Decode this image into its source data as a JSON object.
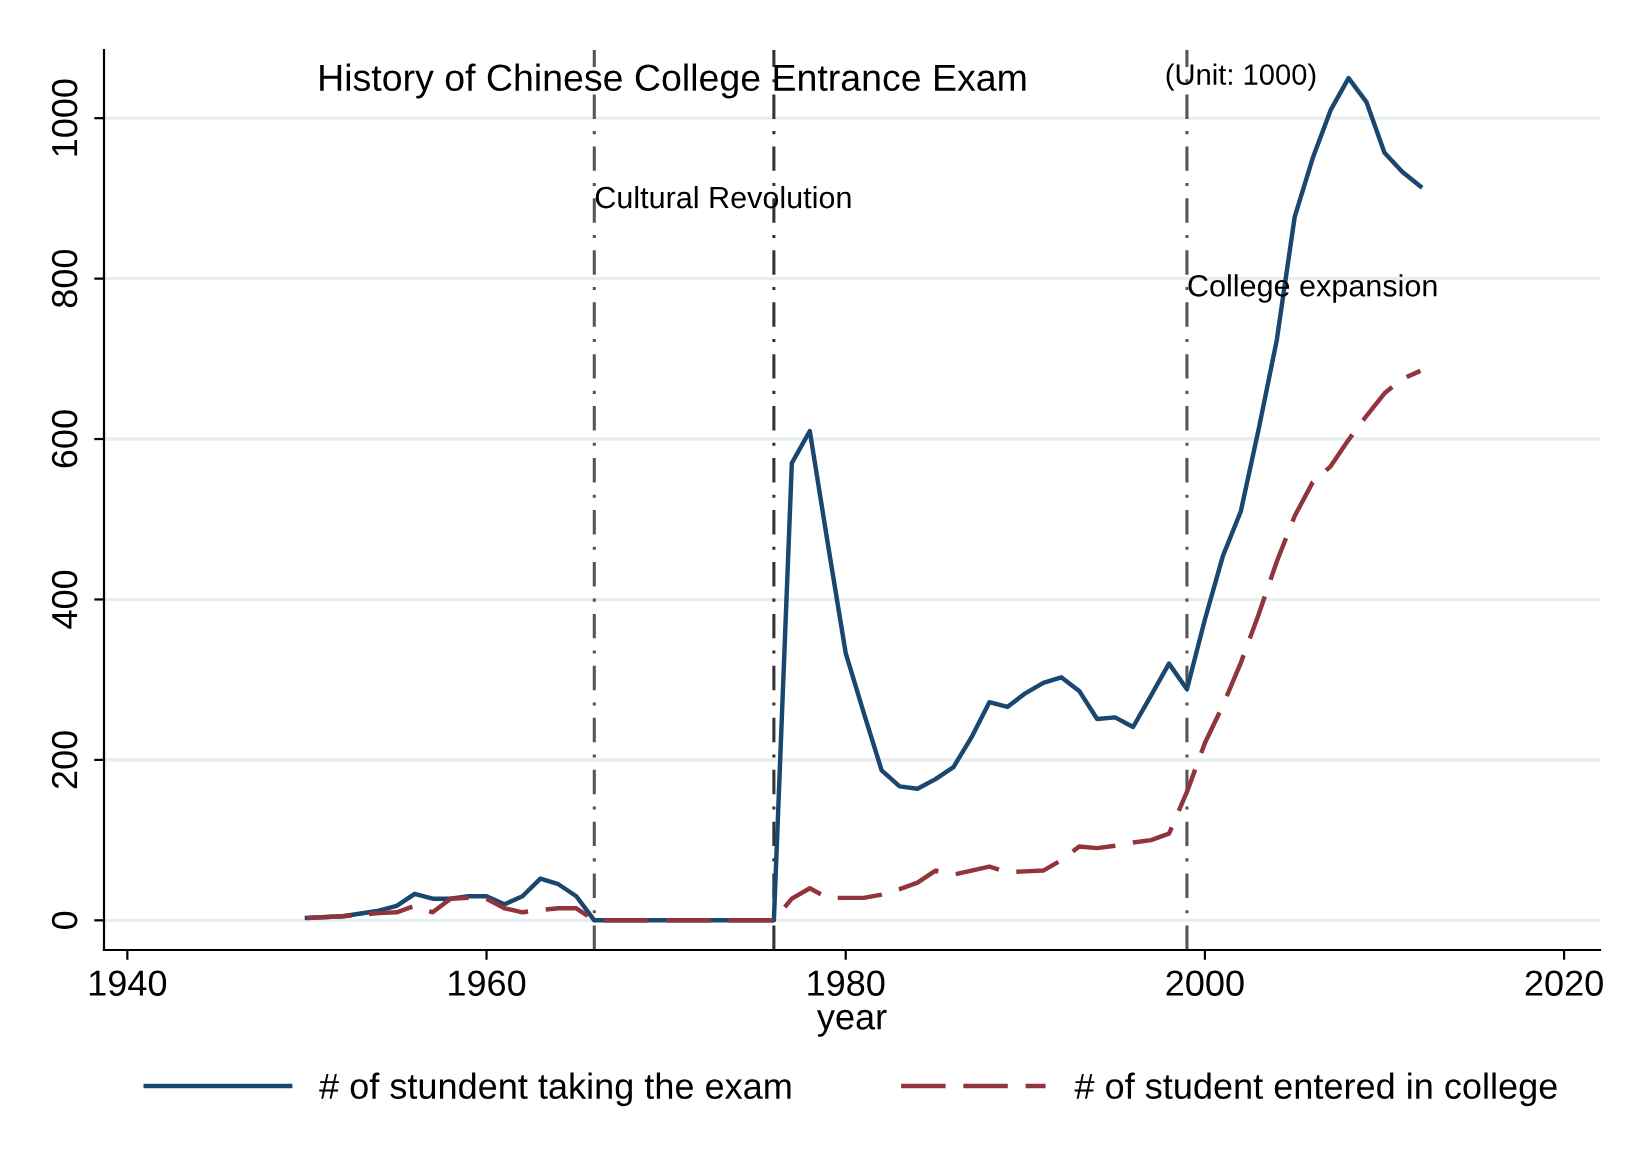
{
  "chart_data": {
    "type": "line",
    "title": "History of Chinese College Entrance Exam",
    "subtitle": "(Unit: 1000)",
    "xlabel": "year",
    "xlim": [
      1938.7,
      2022
    ],
    "xticks": [
      1940,
      1960,
      1980,
      2000,
      2020
    ],
    "ylim": [
      -37,
      1085
    ],
    "yticks": [
      0,
      200,
      400,
      600,
      800,
      1000
    ],
    "grid": "y",
    "legend": "bottom",
    "x": [
      1950,
      1952,
      1954,
      1955,
      1956,
      1957,
      1958,
      1959,
      1960,
      1961,
      1962,
      1963,
      1964,
      1965,
      1966,
      1967,
      1968,
      1969,
      1970,
      1971,
      1972,
      1973,
      1974,
      1975,
      1976,
      1977,
      1978,
      1979,
      1980,
      1981,
      1982,
      1983,
      1984,
      1985,
      1986,
      1987,
      1988,
      1989,
      1990,
      1991,
      1992,
      1993,
      1994,
      1995,
      1996,
      1997,
      1998,
      1999,
      2000,
      2001,
      2002,
      2003,
      2004,
      2005,
      2006,
      2007,
      2008,
      2009,
      2010,
      2011,
      2012
    ],
    "series": [
      {
        "name": "# of stundent taking the exam",
        "color": "#1a476f",
        "line_style": "solid",
        "values": [
          3,
          5,
          12,
          18,
          33,
          27,
          27,
          30,
          30,
          20,
          30,
          52,
          45,
          30,
          0,
          0,
          0,
          0,
          0,
          0,
          0,
          0,
          0,
          0,
          0,
          570,
          610,
          470,
          333,
          259,
          187,
          167,
          164,
          176,
          191,
          228,
          272,
          266,
          283,
          296,
          303,
          286,
          251,
          253,
          241,
          280,
          320,
          288,
          375,
          454,
          510,
          613,
          723,
          877,
          950,
          1010,
          1050,
          1020,
          957,
          933,
          915
        ]
      },
      {
        "name": "# of student entered in college",
        "color": "#90353b",
        "line_style": "dashed",
        "values": [
          3,
          5,
          9,
          10,
          18,
          10,
          27,
          28,
          27,
          15,
          10,
          13,
          15,
          15,
          0,
          0,
          0,
          0,
          0,
          0,
          0,
          0,
          0,
          0,
          0,
          27,
          40,
          28,
          28,
          28,
          32,
          39,
          47,
          62,
          57,
          62,
          67,
          60,
          61,
          62,
          75,
          92,
          90,
          93,
          97,
          100,
          108,
          160,
          221,
          268,
          321,
          382,
          447,
          504,
          546,
          566,
          599,
          629,
          657,
          675,
          685
        ]
      }
    ],
    "ref_lines": [
      {
        "axis": "x",
        "value": 1966,
        "color": "#555555",
        "line_style": "dashdot"
      },
      {
        "axis": "x",
        "value": 1976,
        "color": "#333333",
        "line_style": "dashdot"
      },
      {
        "axis": "x",
        "value": 1999,
        "color": "#555555",
        "line_style": "dashdot"
      }
    ],
    "annotations": [
      {
        "text": "Cultural Revolution",
        "x": 1966,
        "y": 880
      },
      {
        "text": "College expansion",
        "x": 1999,
        "y": 770
      }
    ]
  }
}
